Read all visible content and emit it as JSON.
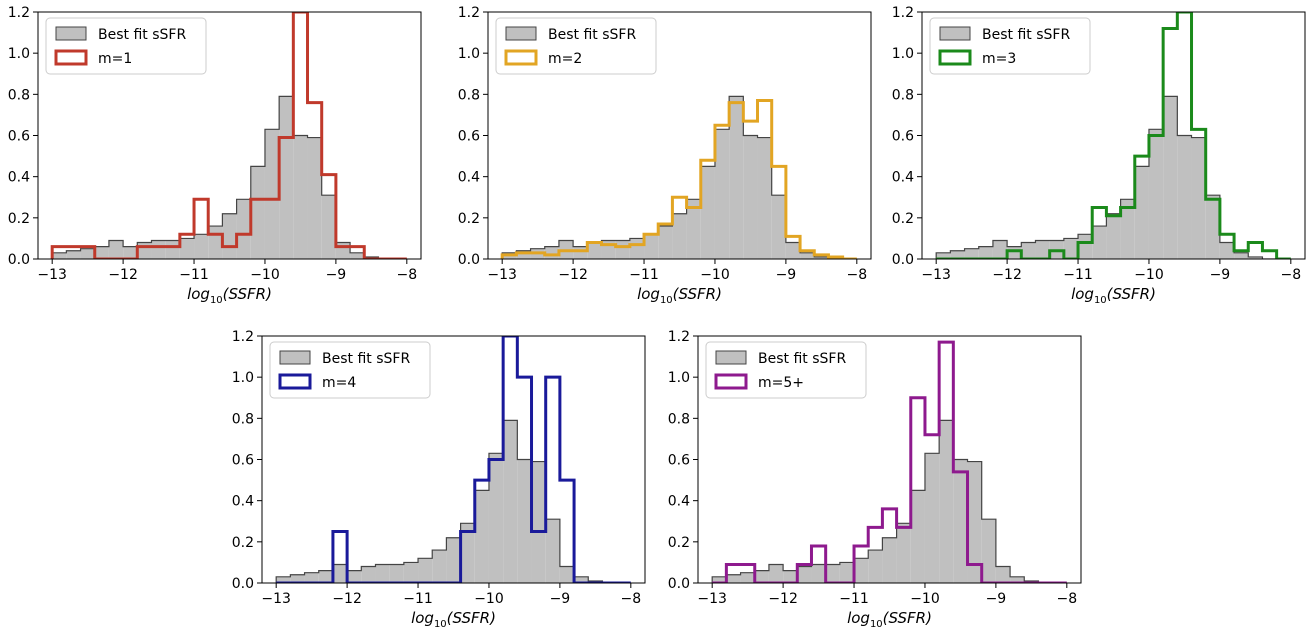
{
  "chart_data": [
    {
      "type": "histogram",
      "xlabel": "log10(SSFR)",
      "xlim": [
        -13.2,
        -7.8
      ],
      "ylim": [
        0,
        1.2
      ],
      "xticks": [
        -13,
        -12,
        -11,
        -10,
        -9,
        -8
      ],
      "yticks": [
        0.0,
        0.2,
        0.4,
        0.6,
        0.8,
        1.0,
        1.2
      ],
      "bin_edges": [
        -13.0,
        -12.8,
        -12.6,
        -12.4,
        -12.2,
        -12.0,
        -11.8,
        -11.6,
        -11.4,
        -11.2,
        -11.0,
        -10.8,
        -10.6,
        -10.4,
        -10.2,
        -10.0,
        -9.8,
        -9.6,
        -9.4,
        -9.2,
        -9.0,
        -8.8,
        -8.6,
        -8.4,
        -8.2,
        -8.0
      ],
      "series": [
        {
          "name": "Best fit sSFR",
          "fill": "#c0c0c0",
          "edge": "#444444",
          "values": [
            0.03,
            0.04,
            0.05,
            0.06,
            0.09,
            0.06,
            0.08,
            0.09,
            0.09,
            0.1,
            0.12,
            0.16,
            0.22,
            0.29,
            0.45,
            0.63,
            0.79,
            0.6,
            0.59,
            0.31,
            0.08,
            0.03,
            0.01,
            0.0,
            0.0
          ]
        },
        {
          "name": "m=1",
          "color": "#c0392b",
          "values": [
            0.06,
            0.06,
            0.06,
            0.0,
            0.0,
            0.0,
            0.06,
            0.06,
            0.06,
            0.12,
            0.29,
            0.12,
            0.06,
            0.12,
            0.29,
            0.29,
            0.59,
            1.2,
            0.76,
            0.41,
            0.06,
            0.06,
            0.0,
            0.0,
            0.0
          ]
        }
      ]
    },
    {
      "type": "histogram",
      "xlabel": "log10(SSFR)",
      "xlim": [
        -13.2,
        -7.8
      ],
      "ylim": [
        0,
        1.2
      ],
      "xticks": [
        -13,
        -12,
        -11,
        -10,
        -9,
        -8
      ],
      "yticks": [
        0.0,
        0.2,
        0.4,
        0.6,
        0.8,
        1.0,
        1.2
      ],
      "bin_edges": [
        -13.0,
        -12.8,
        -12.6,
        -12.4,
        -12.2,
        -12.0,
        -11.8,
        -11.6,
        -11.4,
        -11.2,
        -11.0,
        -10.8,
        -10.6,
        -10.4,
        -10.2,
        -10.0,
        -9.8,
        -9.6,
        -9.4,
        -9.2,
        -9.0,
        -8.8,
        -8.6,
        -8.4,
        -8.2,
        -8.0
      ],
      "series": [
        {
          "name": "Best fit sSFR",
          "fill": "#c0c0c0",
          "edge": "#444444",
          "values": [
            0.03,
            0.04,
            0.05,
            0.06,
            0.09,
            0.06,
            0.08,
            0.09,
            0.09,
            0.1,
            0.12,
            0.16,
            0.22,
            0.29,
            0.45,
            0.63,
            0.79,
            0.6,
            0.59,
            0.31,
            0.08,
            0.03,
            0.01,
            0.0,
            0.0
          ]
        },
        {
          "name": "m=2",
          "color": "#e2a523",
          "values": [
            0.02,
            0.03,
            0.03,
            0.02,
            0.04,
            0.04,
            0.08,
            0.07,
            0.06,
            0.07,
            0.12,
            0.17,
            0.3,
            0.25,
            0.48,
            0.65,
            0.76,
            0.67,
            0.77,
            0.45,
            0.11,
            0.04,
            0.02,
            0.01,
            0.0
          ]
        }
      ]
    },
    {
      "type": "histogram",
      "xlabel": "log10(SSFR)",
      "xlim": [
        -13.2,
        -7.8
      ],
      "ylim": [
        0,
        1.2
      ],
      "xticks": [
        -13,
        -12,
        -11,
        -10,
        -9,
        -8
      ],
      "yticks": [
        0.0,
        0.2,
        0.4,
        0.6,
        0.8,
        1.0,
        1.2
      ],
      "bin_edges": [
        -13.0,
        -12.8,
        -12.6,
        -12.4,
        -12.2,
        -12.0,
        -11.8,
        -11.6,
        -11.4,
        -11.2,
        -11.0,
        -10.8,
        -10.6,
        -10.4,
        -10.2,
        -10.0,
        -9.8,
        -9.6,
        -9.4,
        -9.2,
        -9.0,
        -8.8,
        -8.6,
        -8.4,
        -8.2,
        -8.0
      ],
      "series": [
        {
          "name": "Best fit sSFR",
          "fill": "#c0c0c0",
          "edge": "#444444",
          "values": [
            0.03,
            0.04,
            0.05,
            0.06,
            0.09,
            0.06,
            0.08,
            0.09,
            0.09,
            0.1,
            0.12,
            0.16,
            0.22,
            0.29,
            0.45,
            0.63,
            0.79,
            0.6,
            0.59,
            0.31,
            0.08,
            0.03,
            0.01,
            0.0,
            0.0
          ]
        },
        {
          "name": "m=3",
          "color": "#1b8a1b",
          "values": [
            0.0,
            0.0,
            0.0,
            0.0,
            0.0,
            0.04,
            0.0,
            0.0,
            0.04,
            0.0,
            0.08,
            0.25,
            0.21,
            0.25,
            0.5,
            0.6,
            1.12,
            1.2,
            0.63,
            0.29,
            0.12,
            0.04,
            0.08,
            0.04,
            0.0
          ]
        }
      ]
    },
    {
      "type": "histogram",
      "xlabel": "log10(SSFR)",
      "xlim": [
        -13.2,
        -7.8
      ],
      "ylim": [
        0,
        1.2
      ],
      "xticks": [
        -13,
        -12,
        -11,
        -10,
        -9,
        -8
      ],
      "yticks": [
        0.0,
        0.2,
        0.4,
        0.6,
        0.8,
        1.0,
        1.2
      ],
      "bin_edges": [
        -13.0,
        -12.8,
        -12.6,
        -12.4,
        -12.2,
        -12.0,
        -11.8,
        -11.6,
        -11.4,
        -11.2,
        -11.0,
        -10.8,
        -10.6,
        -10.4,
        -10.2,
        -10.0,
        -9.8,
        -9.6,
        -9.4,
        -9.2,
        -9.0,
        -8.8,
        -8.6,
        -8.4,
        -8.2,
        -8.0
      ],
      "series": [
        {
          "name": "Best fit sSFR",
          "fill": "#c0c0c0",
          "edge": "#444444",
          "values": [
            0.03,
            0.04,
            0.05,
            0.06,
            0.09,
            0.06,
            0.08,
            0.09,
            0.09,
            0.1,
            0.12,
            0.16,
            0.22,
            0.29,
            0.45,
            0.63,
            0.79,
            0.6,
            0.59,
            0.31,
            0.08,
            0.03,
            0.01,
            0.0,
            0.0
          ]
        },
        {
          "name": "m=4",
          "color": "#1a1a9a",
          "values": [
            0.0,
            0.0,
            0.0,
            0.0,
            0.25,
            0.0,
            0.0,
            0.0,
            0.0,
            0.0,
            0.0,
            0.0,
            0.0,
            0.25,
            0.5,
            0.6,
            1.2,
            1.0,
            0.25,
            1.0,
            0.5,
            0.0,
            0.0,
            0.0,
            0.0
          ]
        }
      ]
    },
    {
      "type": "histogram",
      "xlabel": "log10(SSFR)",
      "xlim": [
        -13.2,
        -7.8
      ],
      "ylim": [
        0,
        1.2
      ],
      "xticks": [
        -13,
        -12,
        -11,
        -10,
        -9,
        -8
      ],
      "yticks": [
        0.0,
        0.2,
        0.4,
        0.6,
        0.8,
        1.0,
        1.2
      ],
      "bin_edges": [
        -13.0,
        -12.8,
        -12.6,
        -12.4,
        -12.2,
        -12.0,
        -11.8,
        -11.6,
        -11.4,
        -11.2,
        -11.0,
        -10.8,
        -10.6,
        -10.4,
        -10.2,
        -10.0,
        -9.8,
        -9.6,
        -9.4,
        -9.2,
        -9.0,
        -8.8,
        -8.6,
        -8.4,
        -8.2,
        -8.0
      ],
      "series": [
        {
          "name": "Best fit sSFR",
          "fill": "#c0c0c0",
          "edge": "#444444",
          "values": [
            0.03,
            0.04,
            0.05,
            0.06,
            0.09,
            0.06,
            0.08,
            0.09,
            0.09,
            0.1,
            0.12,
            0.16,
            0.22,
            0.29,
            0.45,
            0.63,
            0.79,
            0.6,
            0.59,
            0.31,
            0.08,
            0.03,
            0.01,
            0.0,
            0.0
          ]
        },
        {
          "name": "m=5+",
          "color": "#8e1a8e",
          "values": [
            0.0,
            0.09,
            0.09,
            0.0,
            0.0,
            0.0,
            0.09,
            0.18,
            0.0,
            0.0,
            0.18,
            0.27,
            0.36,
            0.27,
            0.9,
            0.72,
            1.17,
            0.54,
            0.09,
            0.0,
            0.0,
            0.0,
            0.0,
            0.0,
            0.0
          ]
        }
      ]
    }
  ]
}
